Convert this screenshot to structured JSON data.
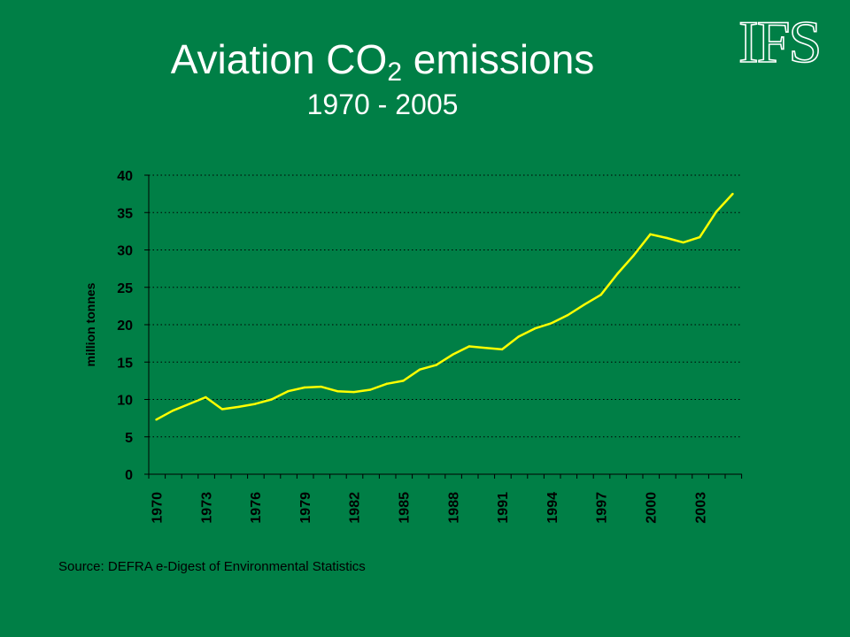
{
  "slide": {
    "title_main": "Aviation CO",
    "title_sub": "2",
    "title_rest": " emissions",
    "subtitle": "1970 - 2005",
    "logo_text": "IFS",
    "source": "Source: DEFRA e-Digest of Environmental Statistics"
  },
  "colors": {
    "background": "#007F46",
    "line": "#FFFF00",
    "axis": "#000000",
    "grid": "#000000"
  },
  "chart_data": {
    "type": "line",
    "title": "Aviation CO2 emissions",
    "subtitle": "1970 - 2005",
    "xlabel": "",
    "ylabel": "million tonnes",
    "ylim": [
      0,
      40
    ],
    "yticks": [
      "0",
      "5",
      "10",
      "15",
      "20",
      "25",
      "30",
      "35",
      "40"
    ],
    "xtick_labels": [
      "1970",
      "1973",
      "1976",
      "1979",
      "1982",
      "1985",
      "1988",
      "1991",
      "1994",
      "1997",
      "2000",
      "2003"
    ],
    "grid": "horizontal dotted",
    "legend": "none",
    "x": [
      1970,
      1971,
      1972,
      1973,
      1974,
      1975,
      1976,
      1977,
      1978,
      1979,
      1980,
      1981,
      1982,
      1983,
      1984,
      1985,
      1986,
      1987,
      1988,
      1989,
      1990,
      1991,
      1992,
      1993,
      1994,
      1995,
      1996,
      1997,
      1998,
      1999,
      2000,
      2001,
      2002,
      2003,
      2004,
      2005
    ],
    "series": [
      {
        "values": [
          7.3,
          8.5,
          9.4,
          10.3,
          8.7,
          9.0,
          9.4,
          10.0,
          11.1,
          11.6,
          11.7,
          11.1,
          11.0,
          11.3,
          12.1,
          12.5,
          14.0,
          14.6,
          16.0,
          17.1,
          16.9,
          16.7,
          18.4,
          19.5,
          20.2,
          21.3,
          22.7,
          24.0,
          26.8,
          29.3,
          32.1,
          31.6,
          31.0,
          31.7,
          35.1,
          37.5
        ]
      }
    ]
  }
}
